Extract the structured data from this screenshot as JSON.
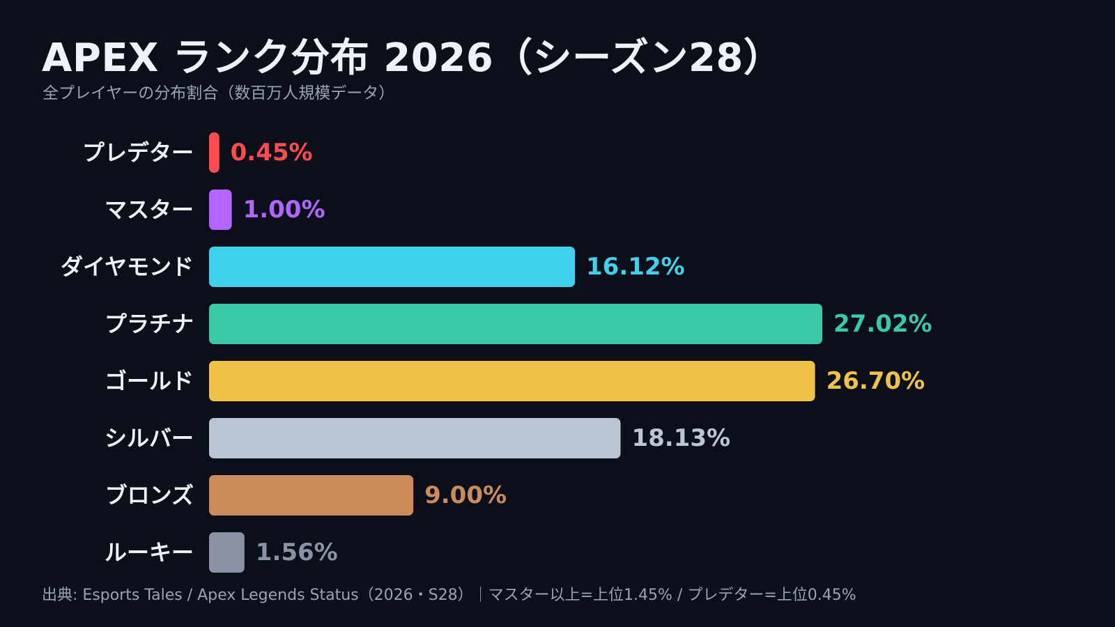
{
  "header": {
    "title": "APEX ランク分布 2026（シーズン28）",
    "subtitle": "全プレイヤーの分布割合（数百万人規模データ）"
  },
  "footer": {
    "source": "出典: Esports Tales / Apex Legends Status（2026・S28）｜マスター以上=上位1.45% / プレデター=上位0.45%"
  },
  "chart_data": {
    "type": "bar",
    "orientation": "horizontal",
    "categories": [
      "プレデター",
      "マスター",
      "ダイヤモンド",
      "プラチナ",
      "ゴールド",
      "シルバー",
      "ブロンズ",
      "ルーキー"
    ],
    "values": [
      0.45,
      1.0,
      16.12,
      27.02,
      26.7,
      18.13,
      9.0,
      1.56
    ],
    "value_labels": [
      "0.45%",
      "1.00%",
      "16.12%",
      "27.02%",
      "26.70%",
      "18.13%",
      "9.00%",
      "1.56%"
    ],
    "colors": [
      "#ff4d4f",
      "#b366ff",
      "#3fd1ee",
      "#39c9a6",
      "#f0c24a",
      "#bcc5d3",
      "#c98c5a",
      "#8a92a4"
    ],
    "label_colors": [
      "#ff4d4f",
      "#b366ff",
      "#3fd1ee",
      "#39c9a6",
      "#f0c24a",
      "#bcc5d3",
      "#c98c5a",
      "#8a92a4"
    ],
    "unit": "%",
    "xlim": [
      0,
      27.02
    ],
    "grid": false,
    "legend": "none"
  }
}
